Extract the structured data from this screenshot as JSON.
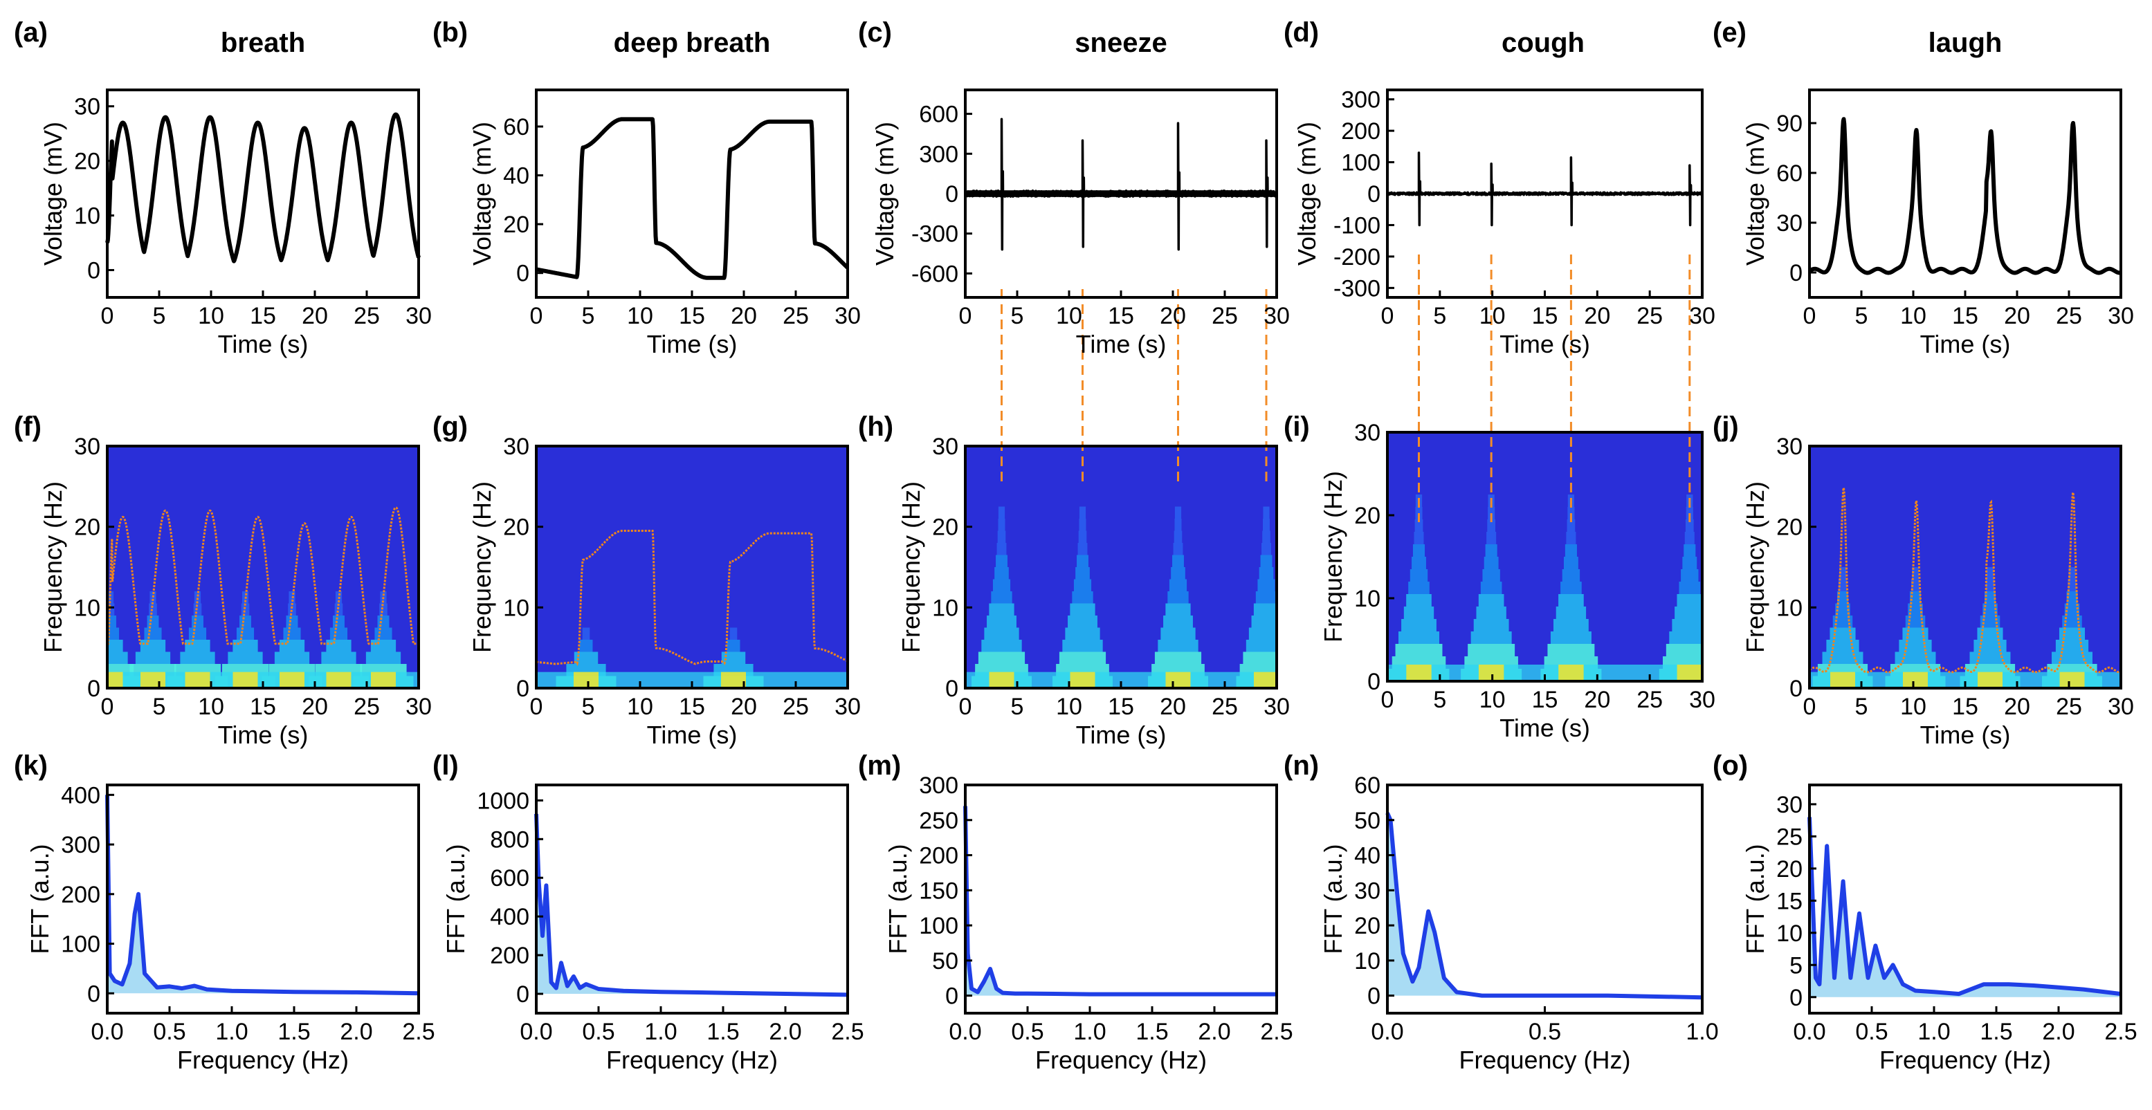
{
  "figure": {
    "columns": [
      {
        "letter": "(a)",
        "title": "breath"
      },
      {
        "letter": "(b)",
        "title": "deep breath"
      },
      {
        "letter": "(c)",
        "title": "sneeze"
      },
      {
        "letter": "(d)",
        "title": "cough"
      },
      {
        "letter": "(e)",
        "title": "laugh"
      }
    ],
    "colors": {
      "signal": "#000000",
      "spectrogram_background": "#2a2fd8",
      "spectrogram_ridge": "#f0861c",
      "fft_line": "#1f3fe6",
      "fft_fill": "#a9dcf4",
      "guide": "#f28c28"
    }
  },
  "chart_data": [
    {
      "panel": "(a)",
      "type": "line",
      "title": "breath",
      "xlabel": "Time (s)",
      "ylabel": "Voltage (mV)",
      "xlim": [
        0,
        30
      ],
      "ylim": [
        -5,
        33
      ],
      "xticks": [
        "0",
        "5",
        "10",
        "15",
        "20",
        "25",
        "30"
      ],
      "yticks": [
        "0",
        "10",
        "20",
        "30"
      ],
      "peak_times": [
        1.5,
        5.6,
        9.9,
        14.5,
        19.0,
        23.5,
        27.8
      ],
      "peak_values": [
        27,
        28,
        28,
        27,
        26,
        27,
        28.5
      ],
      "trough_value": -1
    },
    {
      "panel": "(b)",
      "type": "line",
      "title": "deep breath",
      "xlabel": "Time (s)",
      "ylabel": "Voltage (mV)",
      "xlim": [
        0,
        30
      ],
      "ylim": [
        -10,
        75
      ],
      "xticks": [
        "0",
        "5",
        "10",
        "15",
        "20",
        "25",
        "30"
      ],
      "yticks": [
        "0",
        "20",
        "40",
        "60"
      ],
      "plateaus": [
        {
          "start": 4.3,
          "end": 11.2,
          "value": 63
        },
        {
          "start": 18.5,
          "end": 26.5,
          "value": 62
        }
      ],
      "baseline": -2
    },
    {
      "panel": "(c)",
      "type": "line",
      "title": "sneeze",
      "xlabel": "Time (s)",
      "ylabel": "Voltage (mV)",
      "xlim": [
        0,
        30
      ],
      "ylim": [
        -780,
        780
      ],
      "xticks": [
        "0",
        "5",
        "10",
        "15",
        "20",
        "25",
        "30"
      ],
      "yticks": [
        "600",
        "300",
        "0",
        "-300",
        "-600"
      ],
      "spike_times": [
        3.5,
        11.3,
        20.5,
        29.0
      ],
      "spike_max": [
        560,
        400,
        530,
        400
      ],
      "spike_min": [
        -420,
        -400,
        -420,
        -400
      ]
    },
    {
      "panel": "(d)",
      "type": "line",
      "title": "cough",
      "xlabel": "Time (s)",
      "ylabel": "Voltage (mV)",
      "xlim": [
        0,
        30
      ],
      "ylim": [
        -330,
        330
      ],
      "xticks": [
        "0",
        "5",
        "10",
        "15",
        "20",
        "25",
        "30"
      ],
      "yticks": [
        "300",
        "200",
        "100",
        "0",
        "-100",
        "-200",
        "-300"
      ],
      "spike_times": [
        3.0,
        9.9,
        17.5,
        28.8
      ],
      "spike_max": [
        130,
        95,
        115,
        90
      ],
      "spike_min": [
        -100,
        -100,
        -100,
        -100
      ]
    },
    {
      "panel": "(e)",
      "type": "line",
      "title": "laugh",
      "xlabel": "Time (s)",
      "ylabel": "Voltage (mV)",
      "xlim": [
        0,
        30
      ],
      "ylim": [
        -15,
        110
      ],
      "xticks": [
        "0",
        "5",
        "10",
        "15",
        "20",
        "25",
        "30"
      ],
      "yticks": [
        "0",
        "30",
        "60",
        "90"
      ],
      "burst_times": [
        3.2,
        10.2,
        17.4,
        25.3
      ],
      "burst_peaks": [
        93,
        85,
        85,
        90
      ]
    },
    {
      "panel": "(f)",
      "type": "heatmap",
      "xlabel": "Time (s)",
      "ylabel": "Frequency (Hz)",
      "xlim": [
        0,
        30
      ],
      "ylim": [
        0,
        30
      ],
      "xticks": [
        "0",
        "5",
        "10",
        "15",
        "20",
        "25",
        "30"
      ],
      "yticks": [
        "0",
        "10",
        "20",
        "30"
      ],
      "ridge": "scaled voltage trace from (a)",
      "ridge_peak_hz": 22
    },
    {
      "panel": "(g)",
      "type": "heatmap",
      "xlabel": "Time (s)",
      "ylabel": "Frequency (Hz)",
      "xlim": [
        0,
        30
      ],
      "ylim": [
        0,
        30
      ],
      "xticks": [
        "0",
        "5",
        "10",
        "15",
        "20",
        "25",
        "30"
      ],
      "yticks": [
        "0",
        "10",
        "20",
        "30"
      ],
      "ridge": "scaled voltage trace from (b)",
      "ridge_peak_hz": 19.5
    },
    {
      "panel": "(h)",
      "type": "heatmap",
      "xlabel": "Time (s)",
      "ylabel": "Frequency (Hz)",
      "xlim": [
        0,
        30
      ],
      "ylim": [
        0,
        30
      ],
      "xticks": [
        "0",
        "5",
        "10",
        "15",
        "20",
        "25",
        "30"
      ],
      "yticks": [
        "0",
        "10",
        "20",
        "30"
      ],
      "event_times": [
        3.5,
        11.3,
        20.5,
        29.0
      ]
    },
    {
      "panel": "(i)",
      "type": "heatmap",
      "xlabel": "Time (s)",
      "ylabel": "Frequency (Hz)",
      "xlim": [
        0,
        30
      ],
      "ylim": [
        0,
        30
      ],
      "xticks": [
        "0",
        "5",
        "10",
        "15",
        "20",
        "25",
        "30"
      ],
      "yticks": [
        "0",
        "10",
        "20",
        "30"
      ],
      "event_times": [
        3.0,
        9.9,
        17.5,
        28.8
      ]
    },
    {
      "panel": "(j)",
      "type": "heatmap",
      "xlabel": "Time (s)",
      "ylabel": "Frequency (Hz)",
      "xlim": [
        0,
        30
      ],
      "ylim": [
        0,
        30
      ],
      "xticks": [
        "0",
        "5",
        "10",
        "15",
        "20",
        "25",
        "30"
      ],
      "yticks": [
        "0",
        "10",
        "20",
        "30"
      ],
      "event_times": [
        3.2,
        10.2,
        17.4,
        25.3
      ],
      "ridge_peak_hz": 23
    },
    {
      "panel": "(k)",
      "type": "area",
      "xlabel": "Frequency (Hz)",
      "ylabel": "FFT (a.u.)",
      "xlim": [
        0,
        2.5
      ],
      "ylim": [
        -40,
        420
      ],
      "xticks": [
        "0.0",
        "0.5",
        "1.0",
        "1.5",
        "2.0",
        "2.5"
      ],
      "yticks": [
        "0",
        "100",
        "200",
        "300",
        "400"
      ],
      "x": [
        0,
        0.02,
        0.06,
        0.12,
        0.18,
        0.22,
        0.25,
        0.3,
        0.4,
        0.5,
        0.6,
        0.7,
        0.8,
        1.0,
        1.5,
        2.0,
        2.5
      ],
      "y": [
        400,
        40,
        25,
        18,
        60,
        160,
        200,
        40,
        12,
        14,
        10,
        15,
        8,
        5,
        3,
        2,
        0
      ]
    },
    {
      "panel": "(l)",
      "type": "area",
      "xlabel": "Frequency (Hz)",
      "ylabel": "FFT (a.u.)",
      "xlim": [
        0,
        2.5
      ],
      "ylim": [
        -100,
        1080
      ],
      "xticks": [
        "0.0",
        "0.5",
        "1.0",
        "1.5",
        "2.0",
        "2.5"
      ],
      "yticks": [
        "0",
        "200",
        "400",
        "600",
        "800",
        "1000"
      ],
      "x": [
        0,
        0.02,
        0.05,
        0.08,
        0.12,
        0.16,
        0.2,
        0.25,
        0.3,
        0.35,
        0.4,
        0.5,
        0.7,
        1.0,
        1.5,
        2.0,
        2.5
      ],
      "y": [
        930,
        580,
        300,
        560,
        60,
        30,
        160,
        40,
        90,
        30,
        50,
        25,
        15,
        10,
        5,
        0,
        -5
      ]
    },
    {
      "panel": "(m)",
      "type": "area",
      "xlabel": "Frequency (Hz)",
      "ylabel": "FFT (a.u.)",
      "xlim": [
        0,
        2.5
      ],
      "ylim": [
        -25,
        300
      ],
      "xticks": [
        "0.0",
        "0.5",
        "1.0",
        "1.5",
        "2.0",
        "2.5"
      ],
      "yticks": [
        "0",
        "50",
        "100",
        "150",
        "200",
        "250",
        "300"
      ],
      "x": [
        0,
        0.02,
        0.05,
        0.1,
        0.15,
        0.2,
        0.25,
        0.3,
        0.4,
        0.5,
        1.0,
        1.5,
        2.0,
        2.5
      ],
      "y": [
        270,
        60,
        10,
        5,
        20,
        38,
        10,
        4,
        3,
        3,
        2,
        2,
        2,
        2
      ]
    },
    {
      "panel": "(n)",
      "type": "area",
      "xlabel": "Frequency (Hz)",
      "ylabel": "FFT (a.u.)",
      "xlim": [
        0,
        1.0
      ],
      "ylim": [
        -5,
        60
      ],
      "xticks": [
        "0.0",
        "0.5",
        "1.0"
      ],
      "yticks": [
        "0",
        "10",
        "20",
        "30",
        "40",
        "50",
        "60"
      ],
      "x": [
        0,
        0.01,
        0.03,
        0.05,
        0.08,
        0.1,
        0.13,
        0.15,
        0.18,
        0.22,
        0.3,
        0.5,
        0.7,
        1.0
      ],
      "y": [
        52,
        50,
        30,
        12,
        4,
        8,
        24,
        18,
        5,
        1,
        0,
        0,
        0,
        -0.5
      ]
    },
    {
      "panel": "(o)",
      "type": "area",
      "xlabel": "Frequency (Hz)",
      "ylabel": "FFT (a.u.)",
      "xlim": [
        0,
        2.5
      ],
      "ylim": [
        -2.5,
        33
      ],
      "xticks": [
        "0.0",
        "0.5",
        "1.0",
        "1.5",
        "2.0",
        "2.5"
      ],
      "yticks": [
        "0",
        "5",
        "10",
        "15",
        "20",
        "25",
        "30"
      ],
      "x": [
        0,
        0.05,
        0.08,
        0.14,
        0.2,
        0.27,
        0.33,
        0.4,
        0.47,
        0.53,
        0.6,
        0.67,
        0.75,
        0.85,
        1.0,
        1.2,
        1.4,
        1.6,
        1.8,
        2.0,
        2.2,
        2.5
      ],
      "y": [
        28,
        3,
        2,
        23.5,
        3,
        18,
        3,
        13,
        3,
        8,
        3,
        5,
        2,
        1,
        0.8,
        0.5,
        2,
        2,
        1.8,
        1.5,
        1.2,
        0.5
      ]
    }
  ]
}
